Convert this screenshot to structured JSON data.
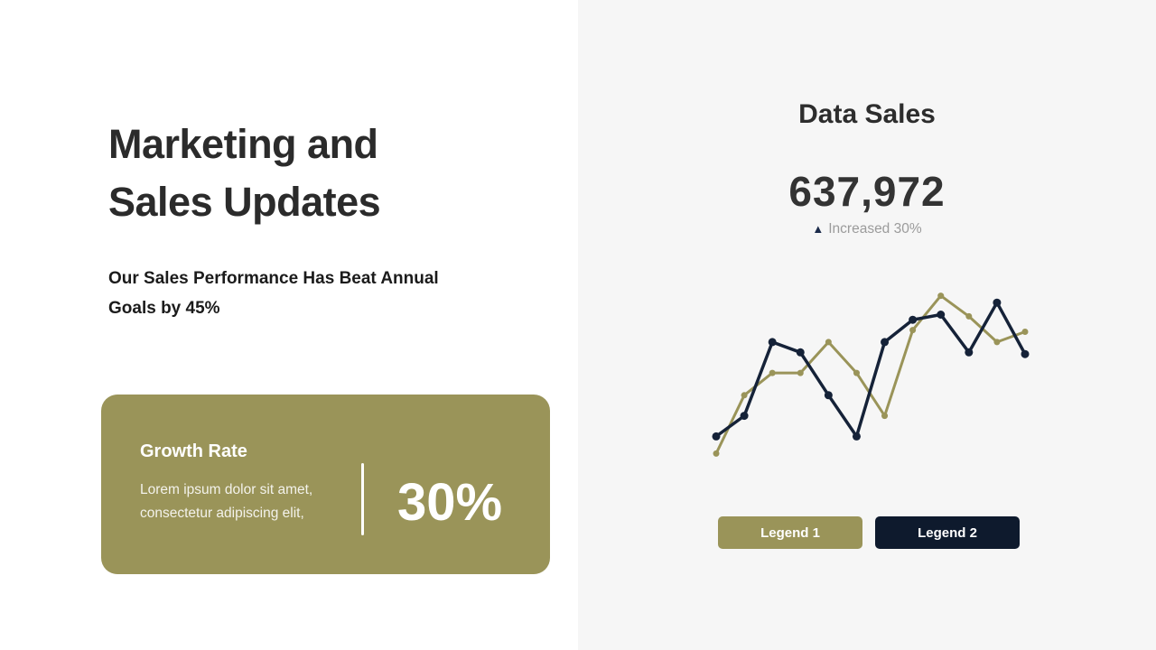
{
  "left": {
    "title_lines": [
      "Marketing and",
      "Sales Updates"
    ],
    "subtitle_lines": [
      "Our Sales Performance Has Beat Annual",
      "Goals by 45%"
    ],
    "card": {
      "heading": "Growth Rate",
      "body_lines": [
        "Lorem ipsum dolor sit amet,",
        "consectetur adipiscing elit,"
      ],
      "value": "30%"
    }
  },
  "right": {
    "heading": "Data Sales",
    "value": "637,972",
    "trend": {
      "icon": "▲",
      "label": "Increased 30%"
    },
    "legend": [
      {
        "label": "Legend 1",
        "color": "#9a9459"
      },
      {
        "label": "Legend 2",
        "color": "#0e1a2d"
      }
    ]
  },
  "colors": {
    "accent_olive": "#9a9459",
    "accent_navy": "#0e1a2d",
    "chart_navy": "#152238",
    "right_panel_bg": "#f6f6f6",
    "title_text": "#2b2b2b",
    "muted_text": "#9b9b9b"
  },
  "chart_data": {
    "type": "line",
    "title": "Data Sales",
    "xlabel": "",
    "ylabel": "",
    "x": [
      1,
      2,
      3,
      4,
      5,
      6,
      7,
      8,
      9,
      10,
      11,
      12
    ],
    "series": [
      {
        "name": "Legend 1",
        "color": "#9a9459",
        "stroke_width": 3,
        "dot_radius": 3.5,
        "values": [
          4,
          38,
          51,
          51,
          69,
          51,
          26,
          76,
          96,
          84,
          69,
          75
        ]
      },
      {
        "name": "Legend 2",
        "color": "#152238",
        "stroke_width": 3.5,
        "dot_radius": 4.5,
        "values": [
          14,
          26,
          69,
          63,
          38,
          14,
          69,
          82,
          85,
          63,
          92,
          62
        ]
      }
    ],
    "ylim": [
      0,
      100
    ],
    "grid": false,
    "axes_hidden": true,
    "legend_position": "bottom"
  }
}
